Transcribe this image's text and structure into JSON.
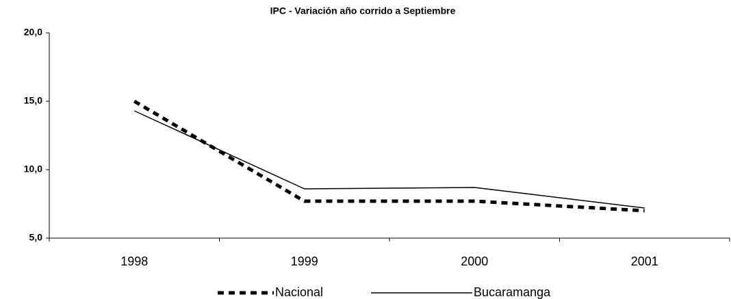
{
  "chart_data": {
    "type": "line",
    "title": "IPC - Variación año corrido a Septiembre",
    "categories": [
      "1998",
      "1999",
      "2000",
      "2001"
    ],
    "series": [
      {
        "name": "Nacional",
        "color": "#000000",
        "dash": "dashed",
        "values": [
          15.0,
          7.7,
          7.7,
          7.0
        ]
      },
      {
        "name": "Bucaramanga",
        "color": "#000000",
        "dash": "solid",
        "values": [
          14.3,
          8.6,
          8.7,
          7.2
        ]
      }
    ],
    "ylim": [
      5,
      20
    ],
    "yticks": [
      {
        "value": 5,
        "label": "5,0"
      },
      {
        "value": 10,
        "label": "10,0"
      },
      {
        "value": 15,
        "label": "15,0"
      },
      {
        "value": 20,
        "label": "20,0"
      }
    ],
    "grid": false,
    "legend": "bottom"
  }
}
